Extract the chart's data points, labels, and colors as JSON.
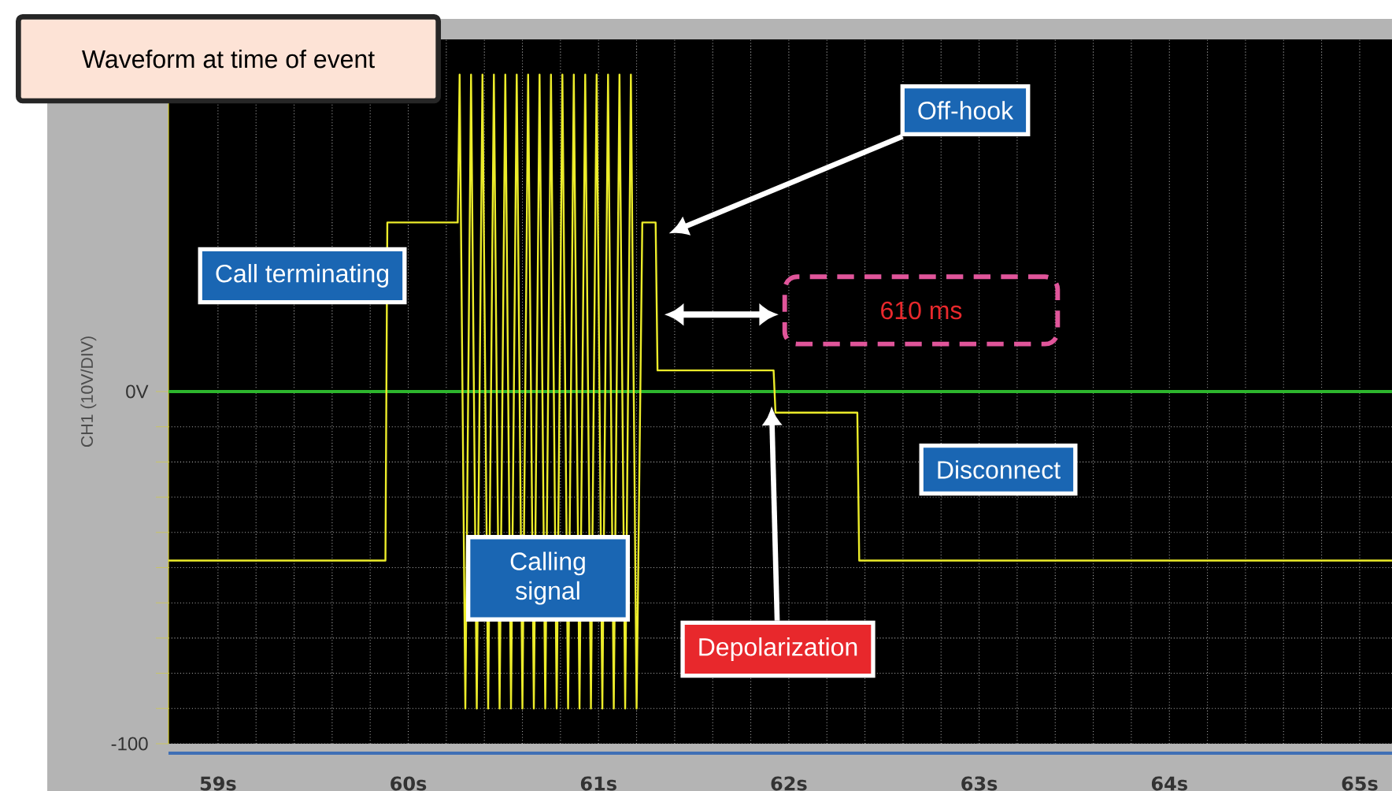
{
  "chart_data": {
    "type": "line",
    "title": "Waveform at time of event",
    "ylabel": "CH1 (10V/DIV)",
    "xlim": [
      58.74,
      65.17
    ],
    "ylim": [
      -100,
      100
    ],
    "xticks": [
      {
        "value": 59,
        "label": "59s"
      },
      {
        "value": 60,
        "label": "60s"
      },
      {
        "value": 61,
        "label": "61s"
      },
      {
        "value": 62,
        "label": "62s"
      },
      {
        "value": 63,
        "label": "63s"
      },
      {
        "value": 64,
        "label": "64s"
      },
      {
        "value": 65,
        "label": "65s"
      }
    ],
    "yticks": [
      {
        "value": -100,
        "label": "-100"
      },
      {
        "value": 0,
        "label": "0V"
      }
    ],
    "grid": true,
    "marker": "none",
    "ref_lines": [
      {
        "axis": "y",
        "value": 0,
        "color": "#2db52d"
      }
    ],
    "series": [
      {
        "color": "#ecec2a",
        "x": [
          58.74,
          59.88,
          59.89,
          60.26,
          60.27,
          60.3,
          60.33,
          60.36,
          60.39,
          60.42,
          60.45,
          60.48,
          60.51,
          60.54,
          60.57,
          60.6,
          60.63,
          60.66,
          60.69,
          60.72,
          60.75,
          60.78,
          60.81,
          60.84,
          60.87,
          60.9,
          60.93,
          60.96,
          60.99,
          61.02,
          61.05,
          61.08,
          61.11,
          61.14,
          61.17,
          61.2,
          61.23,
          61.3,
          61.31,
          61.92,
          61.93,
          62.36,
          62.37,
          65.17
        ],
        "values": [
          -48,
          -48,
          48,
          48,
          90,
          -90,
          90,
          -90,
          90,
          -90,
          90,
          -90,
          90,
          -90,
          90,
          -90,
          90,
          -90,
          90,
          -90,
          90,
          -90,
          90,
          -90,
          90,
          -90,
          90,
          -90,
          90,
          -90,
          90,
          -90,
          90,
          -90,
          90,
          -90,
          48,
          48,
          6,
          6,
          -6,
          -6,
          -48,
          -48
        ]
      }
    ],
    "annotations": [
      "Call terminating",
      "Calling signal",
      "Off-hook",
      "610 ms",
      "Depolarization",
      "Disconnect"
    ]
  }
}
